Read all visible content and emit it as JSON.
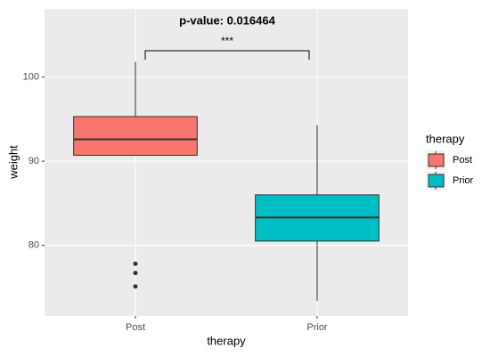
{
  "chart_data": {
    "type": "box",
    "annotations": {
      "p_value": "p-value: 0.016464",
      "significance": "***"
    },
    "x_label": "therapy",
    "y_label": "weight",
    "legend_title": "therapy",
    "categories": [
      "Post",
      "Prior"
    ],
    "series": [
      {
        "name": "Post",
        "color": "#f8766d",
        "whisker_low": 90.7,
        "q1": 90.7,
        "median": 92.6,
        "q3": 95.3,
        "whisker_high": 101.8,
        "outliers": [
          77.8,
          76.7,
          75.1
        ]
      },
      {
        "name": "Prior",
        "color": "#00bfc4",
        "whisker_low": 73.4,
        "q1": 80.5,
        "median": 83.3,
        "q3": 86.0,
        "whisker_high": 94.3,
        "outliers": []
      }
    ],
    "ylim": [
      71.6,
      108.1
    ],
    "yticks": [
      80,
      90,
      100
    ],
    "grid": true
  }
}
